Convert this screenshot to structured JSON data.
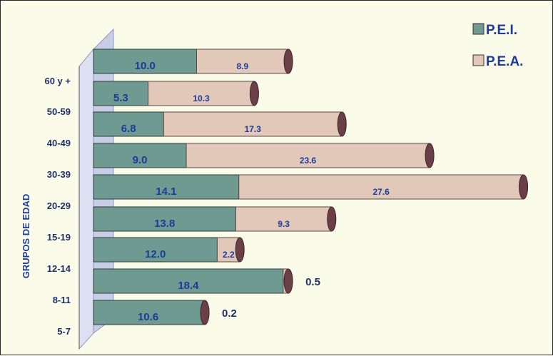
{
  "chart_data": {
    "type": "bar",
    "stacked": true,
    "orientation": "horizontal",
    "three_d": true,
    "ylabel": "GRUPOS DE EDAD",
    "xlim": [
      0,
      42
    ],
    "categories": [
      "60 y +",
      "50-59",
      "40-49",
      "30-39",
      "20-29",
      "15-19",
      "12-14",
      "8-11",
      "5-7"
    ],
    "series": [
      {
        "name": "P.E.I.",
        "color": "#6f9a92",
        "values": [
          10.0,
          5.3,
          6.8,
          9.0,
          14.1,
          13.8,
          12.0,
          18.4,
          10.6
        ],
        "labels": [
          "10.0",
          "5.3",
          "6.8",
          "9.0",
          "14.1",
          "13.8",
          "12.0",
          "18.4",
          "10.6"
        ]
      },
      {
        "name": "P.E.A.",
        "color": "#e2c8b8",
        "values": [
          8.9,
          10.3,
          17.3,
          23.6,
          27.6,
          9.3,
          2.2,
          0.5,
          0.2
        ],
        "labels": [
          "8.9",
          "10.3",
          "17.3",
          "23.6",
          "27.6",
          "9.3",
          "2.2",
          "0.5",
          "0.2"
        ]
      }
    ],
    "legend": "top-right",
    "grid": false
  }
}
